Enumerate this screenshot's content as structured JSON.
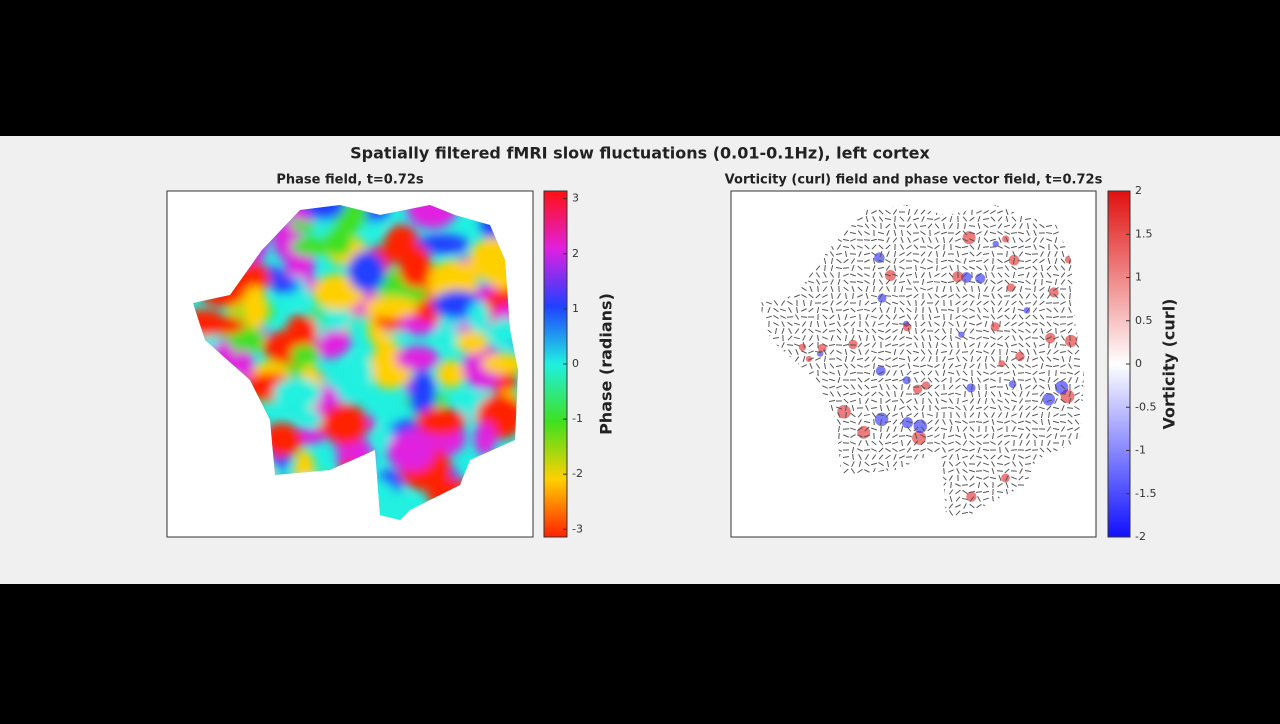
{
  "title": "Spatially filtered fMRI slow fluctuations (0.01-0.1Hz), left cortex",
  "chart_data": [
    {
      "type": "phase",
      "title": "Phase field, t=0.72s",
      "colorbar_label": "Phase (radians)",
      "clim": [
        -3.14,
        3.14
      ],
      "cticks": [
        -3,
        -2,
        -1,
        0,
        1,
        2,
        3
      ],
      "colormap": [
        "#ff2000",
        "#ffd000",
        "#40e020",
        "#20f0e0",
        "#2040ff",
        "#e020e0",
        "#ff1010"
      ]
    },
    {
      "type": "vorticity",
      "title": "Vorticity (curl) field and phase vector field, t=0.72s",
      "colorbar_label": "Vorticity (curl)",
      "clim": [
        -2,
        2
      ],
      "cticks": [
        -2,
        -1.5,
        -1,
        -0.5,
        0,
        0.5,
        1,
        1.5,
        2
      ],
      "colormap": [
        "#1010ff",
        "#ffffff",
        "#e01010"
      ]
    }
  ]
}
